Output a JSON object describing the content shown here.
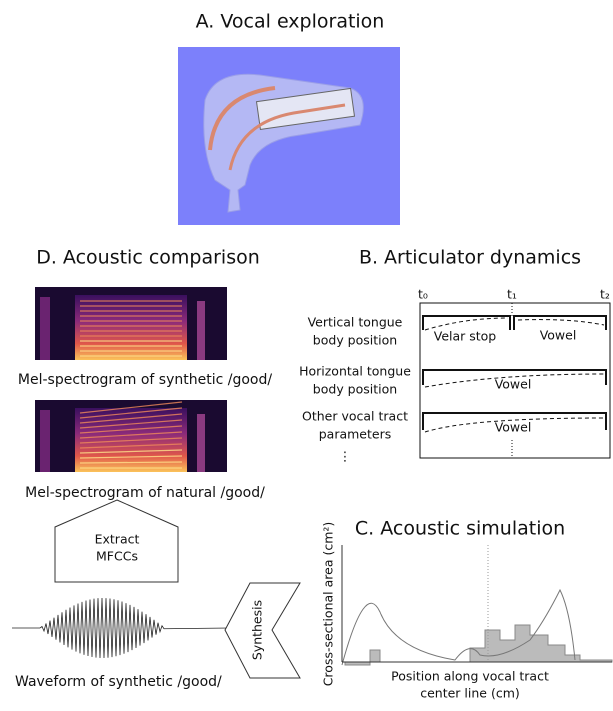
{
  "panels": {
    "a": {
      "title": "A. Vocal exploration"
    },
    "d": {
      "title": "D. Acoustic comparison",
      "synthetic_caption": "Mel-spectrogram of synthetic /good/",
      "natural_caption": "Mel-spectrogram of natural /good/",
      "extract_lines": [
        "Extract",
        "MFCCs"
      ],
      "waveform_caption": "Waveform of synthetic /good/",
      "synthesis": "Synthesis"
    },
    "b": {
      "title": "B. Articulator dynamics",
      "times": [
        "t₀",
        "t₁",
        "t₂"
      ],
      "rows": [
        {
          "label_lines": [
            "Vertical tongue",
            "body position"
          ],
          "segments": [
            "Velar stop",
            "Vowel"
          ]
        },
        {
          "label_lines": [
            "Horizontal tongue",
            "body position"
          ],
          "segments": [
            "Vowel"
          ]
        },
        {
          "label_lines": [
            "Other vocal tract",
            "parameters"
          ],
          "segments": [
            "Vowel"
          ]
        }
      ],
      "more": "⋮"
    },
    "c": {
      "title": "C. Acoustic simulation",
      "y_label": "Cross-sectional area (cm²)",
      "x_label_lines": [
        "Position along vocal tract",
        "center line (cm)"
      ]
    }
  }
}
